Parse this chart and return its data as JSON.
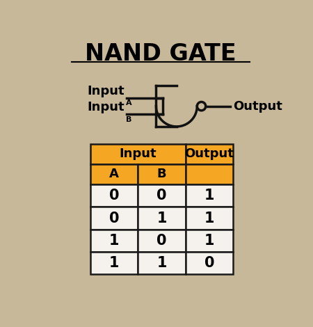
{
  "title": "NAND GATE",
  "bg_color": "#c8b89a",
  "title_fontsize": 24,
  "title_fontweight": "bold",
  "gate_label_A": "Input",
  "gate_label_A_sub": "A",
  "gate_label_B": "Input",
  "gate_label_B_sub": "B",
  "gate_output_label": "Output",
  "table_header_color": "#f5a623",
  "table_border_color": "#1a1a1a",
  "table_col1_header": "Input",
  "table_col2_header": "Output",
  "table_sub_headers": [
    "A",
    "B"
  ],
  "truth_table": [
    [
      0,
      0,
      1
    ],
    [
      0,
      1,
      1
    ],
    [
      1,
      0,
      1
    ],
    [
      1,
      1,
      0
    ]
  ],
  "table_fontsize": 13,
  "gate_color": "#111111",
  "cell_color": "#f5f2ee"
}
